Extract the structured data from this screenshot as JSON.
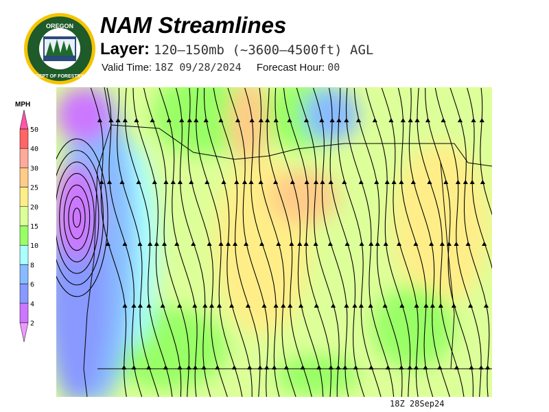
{
  "header": {
    "logo_text": "OREGON DEPARTMENT OF FORESTRY",
    "title": "NAM Streamlines",
    "layer_label": "Layer:",
    "layer_value": "120–150mb (~3600–4500ft) AGL",
    "valid_label": "Valid Time:",
    "valid_value": "18Z 09/28/2024",
    "forecast_label": "Forecast Hour:",
    "forecast_value": "00"
  },
  "legend": {
    "unit": "MPH",
    "ticks": [
      "50",
      "40",
      "30",
      "25",
      "20",
      "15",
      "10",
      "8",
      "6",
      "4",
      "2"
    ],
    "colors": [
      "#ff6666",
      "#ffaa99",
      "#ffcc88",
      "#ffee88",
      "#ddff99",
      "#99ff66",
      "#aaffff",
      "#88bbff",
      "#8899ff",
      "#cc77ff"
    ],
    "over_color": "#ff55aa",
    "under_color": "#ee99ff"
  },
  "footer": {
    "timestamp": "18Z 28Sep24"
  }
}
